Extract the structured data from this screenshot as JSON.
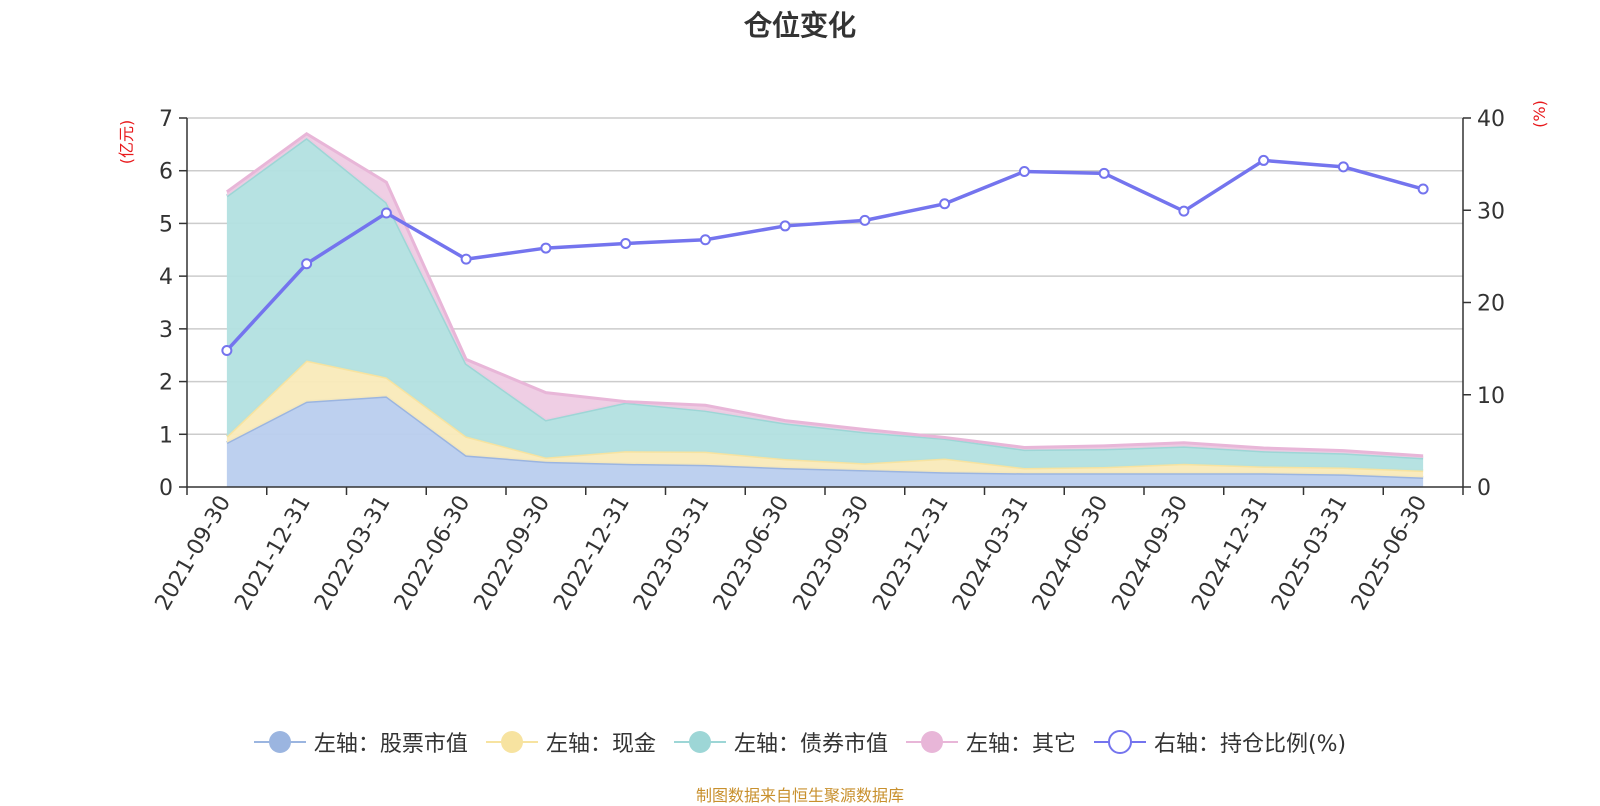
{
  "chart_data": {
    "type": "area",
    "title": "仓位变化",
    "categories": [
      "2021-09-30",
      "2021-12-31",
      "2022-03-31",
      "2022-06-30",
      "2022-09-30",
      "2022-12-31",
      "2023-03-31",
      "2023-06-30",
      "2023-09-30",
      "2023-12-31",
      "2024-03-31",
      "2024-06-30",
      "2024-09-30",
      "2024-12-31",
      "2025-03-31",
      "2025-06-30"
    ],
    "left_axis": {
      "label": "(亿元)",
      "ylim": [
        0,
        7
      ],
      "ticks": [
        "0",
        "1",
        "2",
        "3",
        "4",
        "5",
        "6",
        "7"
      ]
    },
    "right_axis": {
      "label": "(%)",
      "ylim": [
        0,
        40
      ],
      "ticks": [
        "0",
        "10",
        "20",
        "30",
        "40"
      ]
    },
    "stacked": true,
    "series": [
      {
        "name": "左轴：股票市值",
        "axis": "left",
        "type": "area",
        "color": "#9bb5e0",
        "fill": "#b9cdee",
        "values": [
          0.84,
          1.62,
          1.72,
          0.6,
          0.48,
          0.44,
          0.42,
          0.36,
          0.32,
          0.28,
          0.26,
          0.26,
          0.26,
          0.26,
          0.24,
          0.18
        ]
      },
      {
        "name": "左轴：现金",
        "axis": "left",
        "type": "area",
        "color": "#f7e3a0",
        "fill": "#f9eab9",
        "values": [
          0.12,
          0.78,
          0.36,
          0.36,
          0.08,
          0.24,
          0.25,
          0.17,
          0.13,
          0.26,
          0.1,
          0.12,
          0.18,
          0.13,
          0.13,
          0.13
        ]
      },
      {
        "name": "左轴：债券市值",
        "axis": "left",
        "type": "area",
        "color": "#9dd6d6",
        "fill": "#b2e0e0",
        "values": [
          4.56,
          4.22,
          3.32,
          1.38,
          0.71,
          0.92,
          0.78,
          0.68,
          0.59,
          0.38,
          0.35,
          0.34,
          0.33,
          0.29,
          0.27,
          0.24
        ]
      },
      {
        "name": "左轴：其它",
        "axis": "left",
        "type": "area",
        "color": "#e8b6d8",
        "fill": "#eecbe3",
        "values": [
          0.08,
          0.08,
          0.38,
          0.08,
          0.52,
          0.02,
          0.1,
          0.05,
          0.05,
          0.02,
          0.04,
          0.06,
          0.07,
          0.06,
          0.05,
          0.04
        ]
      },
      {
        "name": "右轴：持仓比例(%)",
        "axis": "right",
        "type": "line",
        "color": "#7474ee",
        "values": [
          14.8,
          24.2,
          29.7,
          24.7,
          25.9,
          26.4,
          26.8,
          28.3,
          28.9,
          30.7,
          34.2,
          34.0,
          29.9,
          35.4,
          34.7,
          32.3
        ]
      }
    ],
    "grid": true,
    "legend_position": "bottom"
  },
  "footer": "制图数据来自恒生聚源数据库",
  "colors": {
    "axis_label": "#e8191c",
    "grid": "#cccccc",
    "axis": "#333333",
    "tick_text": "#333333"
  }
}
